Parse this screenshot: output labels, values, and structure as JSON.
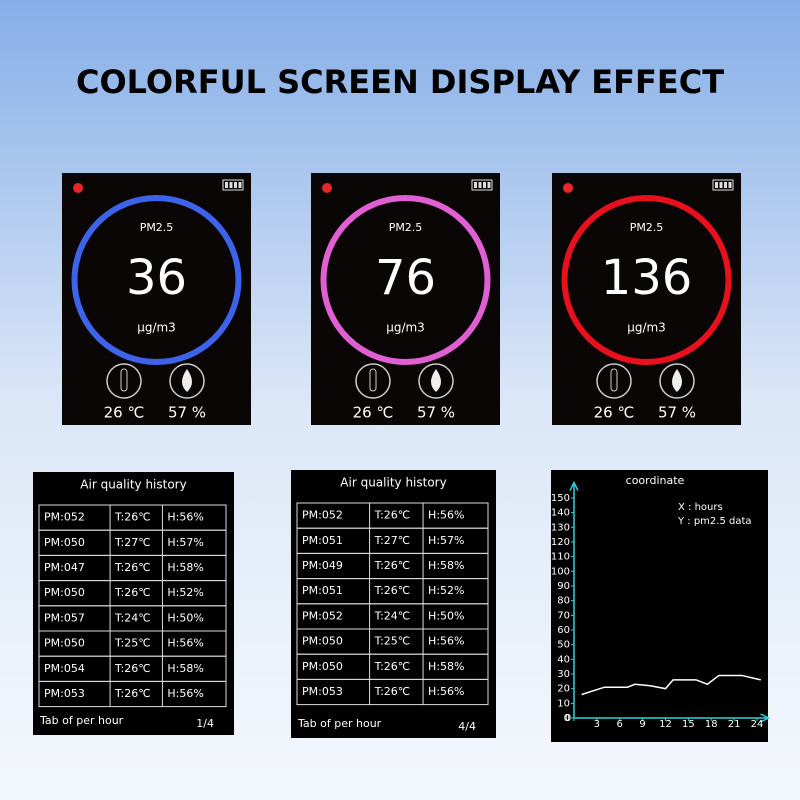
{
  "title": "COLORFUL SCREEN DISPLAY EFFECT",
  "screens": [
    {
      "label": "PM2.5",
      "value": 36,
      "unit": "μg/m3",
      "temperature": "26 ℃",
      "humidity": "57 %",
      "ring_color": "#3d63ea"
    },
    {
      "label": "PM2.5",
      "value": 76,
      "unit": "μg/m3",
      "temperature": "26 ℃",
      "humidity": "57 %",
      "ring_color": "#e05fd2"
    },
    {
      "label": "PM2.5",
      "value": 136,
      "unit": "μg/m3",
      "temperature": "26 ℃",
      "humidity": "57 %",
      "ring_color": "#e8101c"
    }
  ],
  "tables": [
    {
      "title": "Air quality history",
      "footer": "Tab of per hour",
      "page": "1/4",
      "rows": [
        [
          "PM:052",
          "T:26℃",
          "H:56%"
        ],
        [
          "PM:050",
          "T:27℃",
          "H:57%"
        ],
        [
          "PM:047",
          "T:26℃",
          "H:58%"
        ],
        [
          "PM:050",
          "T:26℃",
          "H:52%"
        ],
        [
          "PM:057",
          "T:24℃",
          "H:50%"
        ],
        [
          "PM:050",
          "T:25℃",
          "H:56%"
        ],
        [
          "PM:054",
          "T:26℃",
          "H:58%"
        ],
        [
          "PM:053",
          "T:26℃",
          "H:56%"
        ]
      ]
    },
    {
      "title": "Air quality history",
      "footer": "Tab of per hour",
      "page": "4/4",
      "rows": [
        [
          "PM:052",
          "T:26℃",
          "H:56%"
        ],
        [
          "PM:051",
          "T:27℃",
          "H:57%"
        ],
        [
          "PM:049",
          "T:26℃",
          "H:58%"
        ],
        [
          "PM:051",
          "T:26℃",
          "H:52%"
        ],
        [
          "PM:052",
          "T:24℃",
          "H:50%"
        ],
        [
          "PM:050",
          "T:25℃",
          "H:56%"
        ],
        [
          "PM:050",
          "T:26℃",
          "H:58%"
        ],
        [
          "PM:053",
          "T:26℃",
          "H:56%"
        ]
      ]
    }
  ],
  "chart_data": {
    "type": "line",
    "title": "coordinate",
    "annotations": [
      "X : hours",
      "Y : pm2.5 data"
    ],
    "x": [
      1,
      4,
      7,
      8,
      10,
      12,
      13,
      16,
      17.5,
      19,
      22,
      24.5
    ],
    "values": [
      16,
      21,
      21,
      23,
      22,
      20,
      26,
      26,
      23,
      29,
      29,
      26
    ],
    "color": "#ffffff",
    "axis_color": "#2fd3e0",
    "xlim": [
      0,
      25
    ],
    "xticks": [
      0,
      3,
      6,
      9,
      12,
      15,
      18,
      21,
      24
    ],
    "ylim": [
      0,
      155
    ],
    "yticks": [
      0,
      10,
      20,
      30,
      40,
      50,
      60,
      70,
      80,
      90,
      100,
      110,
      120,
      130,
      140,
      150
    ]
  }
}
